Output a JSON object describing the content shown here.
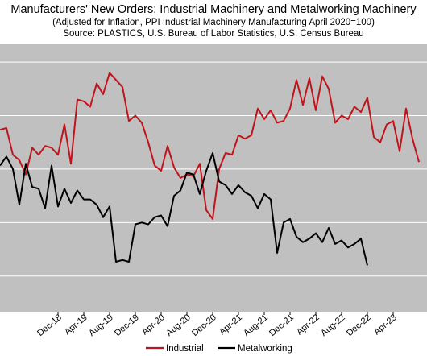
{
  "chart_data": {
    "type": "line",
    "title": "Manufacturers' New Orders: Industrial Machinery and Metalworking Machinery",
    "subtitle": "(Adjusted for Inflation, PPI Industrial Machinery Manufacturing April 2020=100)",
    "source": "Source: PLASTICS, U.S. Bureau of Labor Statistics, U.S. Census Bureau",
    "xlabel": "",
    "ylabel": "",
    "x_ticks": [
      "Dec-18",
      "Apr-19",
      "Aug-19",
      "Dec-19",
      "Apr-20",
      "Aug-20",
      "Dec-20",
      "Apr-21",
      "Aug-21",
      "Dec-21",
      "Apr-22",
      "Aug-22",
      "Dec-22",
      "Apr-23"
    ],
    "grid": true,
    "legend_position": "bottom",
    "series": [
      {
        "name": "Industrial",
        "color": "#c0141c",
        "values": [
          122,
          123,
          108,
          105,
          97,
          112,
          108,
          113,
          112,
          108,
          125,
          103,
          139,
          138,
          135,
          148,
          142,
          154,
          150,
          146,
          127,
          130,
          126,
          115,
          102,
          99,
          113,
          101,
          95,
          97,
          96,
          103,
          77,
          72,
          100,
          109,
          108,
          119,
          117,
          119,
          134,
          128,
          133,
          126,
          127,
          134,
          150,
          136,
          151,
          133,
          152,
          145,
          126,
          130,
          128,
          135,
          132,
          140,
          118,
          115,
          125,
          127,
          110,
          134,
          117,
          104
        ]
      },
      {
        "name": "Metalworking",
        "color": "#000000",
        "values": [
          102,
          107,
          100,
          80,
          103,
          90,
          89,
          78,
          102,
          79,
          89,
          81,
          88,
          83,
          83,
          80,
          73,
          79,
          48,
          49,
          48,
          69,
          70,
          69,
          73,
          74,
          68,
          85,
          88,
          98,
          97,
          86,
          99,
          109,
          93,
          91,
          86,
          91,
          87,
          85,
          78,
          86,
          83,
          53,
          70,
          72,
          62,
          59,
          61,
          64,
          59,
          67,
          58,
          60,
          56,
          58,
          61,
          46
        ]
      }
    ]
  }
}
